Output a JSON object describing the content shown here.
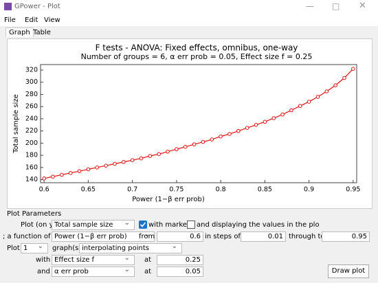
{
  "window": {
    "title": "GPower - Plot",
    "menu": [
      "File",
      "Edit",
      "View"
    ],
    "tabs": [
      "Graph",
      "Table"
    ]
  },
  "chart_data": {
    "type": "line",
    "title": "F tests - ANOVA: Fixed effects, omnibus, one-way",
    "subtitle": "Number of groups = 6, α err prob = 0.05, Effect size f = 0.25",
    "x_label": "Power (1−β err prob)",
    "y_label": "Total sample size",
    "x": [
      0.6,
      0.61,
      0.62,
      0.63,
      0.64,
      0.65,
      0.66,
      0.67,
      0.68,
      0.69,
      0.7,
      0.71,
      0.72,
      0.73,
      0.74,
      0.75,
      0.76,
      0.77,
      0.78,
      0.79,
      0.8,
      0.81,
      0.82,
      0.83,
      0.84,
      0.85,
      0.86,
      0.87,
      0.88,
      0.89,
      0.9,
      0.91,
      0.92,
      0.93,
      0.94,
      0.95
    ],
    "values": [
      142,
      145,
      148,
      151,
      154,
      157,
      160,
      163,
      166,
      169,
      172,
      175,
      179,
      182,
      186,
      190,
      194,
      198,
      202,
      206,
      211,
      215,
      220,
      225,
      230,
      235,
      241,
      247,
      254,
      261,
      268,
      276,
      285,
      295,
      307,
      322
    ],
    "color": "#e01010",
    "markers": true,
    "xlim": [
      0.596,
      0.954
    ],
    "ylim": [
      135,
      329
    ],
    "xticks": [
      0.6,
      0.65,
      0.7,
      0.75,
      0.8,
      0.85,
      0.9,
      0.95
    ],
    "yticks": [
      140,
      160,
      180,
      200,
      220,
      240,
      260,
      280,
      300,
      320
    ]
  },
  "plot_parameters": {
    "heading": "Plot Parameters",
    "row1": {
      "label": "Plot (on y",
      "select": "Total sample size",
      "markers": "with markers",
      "display": "and displaying the values in the plo"
    },
    "row2": {
      "label": "; a function of",
      "select": "Power (1−β err prob)",
      "from": "from",
      "from_value": "0.6",
      "steps": "in steps of",
      "steps_value": "0.01",
      "through": "through to",
      "through_value": "0.95"
    },
    "row3": {
      "label": "Plot",
      "count": "1",
      "graphs": "graph(s)",
      "select": "interpolating points"
    },
    "row4": {
      "label": "with",
      "select": "Effect size f",
      "at": "at",
      "value": "0.25"
    },
    "row5": {
      "label": "and",
      "select": "α err prob",
      "at": "at",
      "value": "0.05"
    },
    "button": "Draw plot"
  }
}
